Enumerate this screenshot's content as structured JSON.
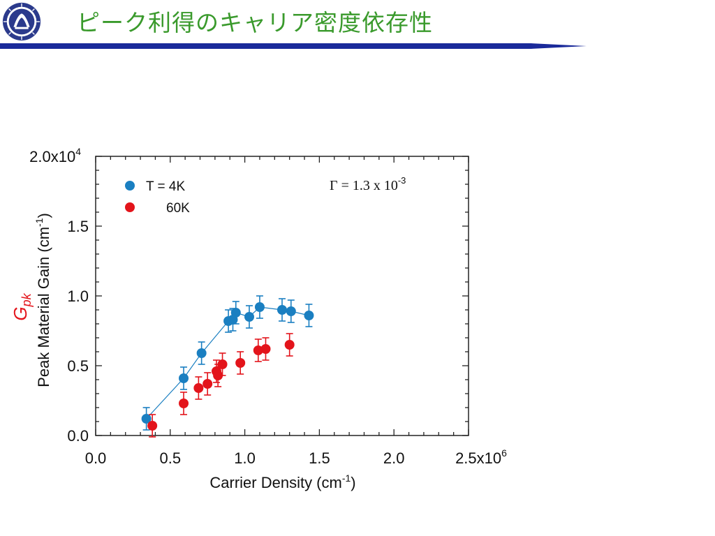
{
  "slide": {
    "title": "ピーク利得のキャリア密度依存性"
  },
  "colors": {
    "title_green": "#3a9a2c",
    "bar_navy": "#1a2a9a",
    "series_4k": "#1a7fc1",
    "series_60k": "#e3141b",
    "gpk_label": "#e3141b"
  },
  "chart_data": {
    "type": "scatter",
    "xlabel": "Carrier Density (cm",
    "xlabel_sup": "-1",
    "xlabel_end": ")",
    "ylabel": "Peak Material Gain (cm",
    "ylabel_sup": "-1",
    "ylabel_end": ")",
    "side_label": "G",
    "side_label_sub": "pk",
    "annotation": {
      "text": "Γ = 1.3 x 10",
      "sup": "-3"
    },
    "x_tick_labels": [
      "0.0",
      "0.5",
      "1.0",
      "1.5",
      "2.0",
      "2.5x10"
    ],
    "x_exp": "6",
    "y_tick_labels": [
      "0.0",
      "0.5",
      "1.0",
      "1.5",
      "2.0x10"
    ],
    "y_exp": "4",
    "xlim": [
      0,
      2500000
    ],
    "ylim": [
      0,
      20000
    ],
    "grid": false,
    "legend_position": "top-left",
    "series": [
      {
        "name": "T = 4K",
        "connected": true,
        "color": "#1a7fc1",
        "points": [
          {
            "x": 340000,
            "y": 1200,
            "err": 800
          },
          {
            "x": 590000,
            "y": 4100,
            "err": 800
          },
          {
            "x": 710000,
            "y": 5900,
            "err": 800
          },
          {
            "x": 890000,
            "y": 8200,
            "err": 800
          },
          {
            "x": 920000,
            "y": 8300,
            "err": 800
          },
          {
            "x": 940000,
            "y": 8800,
            "err": 800
          },
          {
            "x": 1030000,
            "y": 8500,
            "err": 800
          },
          {
            "x": 1100000,
            "y": 9200,
            "err": 800
          },
          {
            "x": 1250000,
            "y": 9000,
            "err": 800
          },
          {
            "x": 1310000,
            "y": 8900,
            "err": 800
          },
          {
            "x": 1430000,
            "y": 8600,
            "err": 800
          }
        ]
      },
      {
        "name": "60K",
        "connected": false,
        "color": "#e3141b",
        "points": [
          {
            "x": 380000,
            "y": 700,
            "err": 800
          },
          {
            "x": 590000,
            "y": 2300,
            "err": 800
          },
          {
            "x": 690000,
            "y": 3400,
            "err": 800
          },
          {
            "x": 750000,
            "y": 3700,
            "err": 800
          },
          {
            "x": 810000,
            "y": 4600,
            "err": 800
          },
          {
            "x": 820000,
            "y": 4300,
            "err": 800
          },
          {
            "x": 850000,
            "y": 5100,
            "err": 800
          },
          {
            "x": 970000,
            "y": 5200,
            "err": 800
          },
          {
            "x": 1090000,
            "y": 6100,
            "err": 800
          },
          {
            "x": 1140000,
            "y": 6200,
            "err": 800
          },
          {
            "x": 1300000,
            "y": 6500,
            "err": 800
          }
        ]
      }
    ]
  }
}
